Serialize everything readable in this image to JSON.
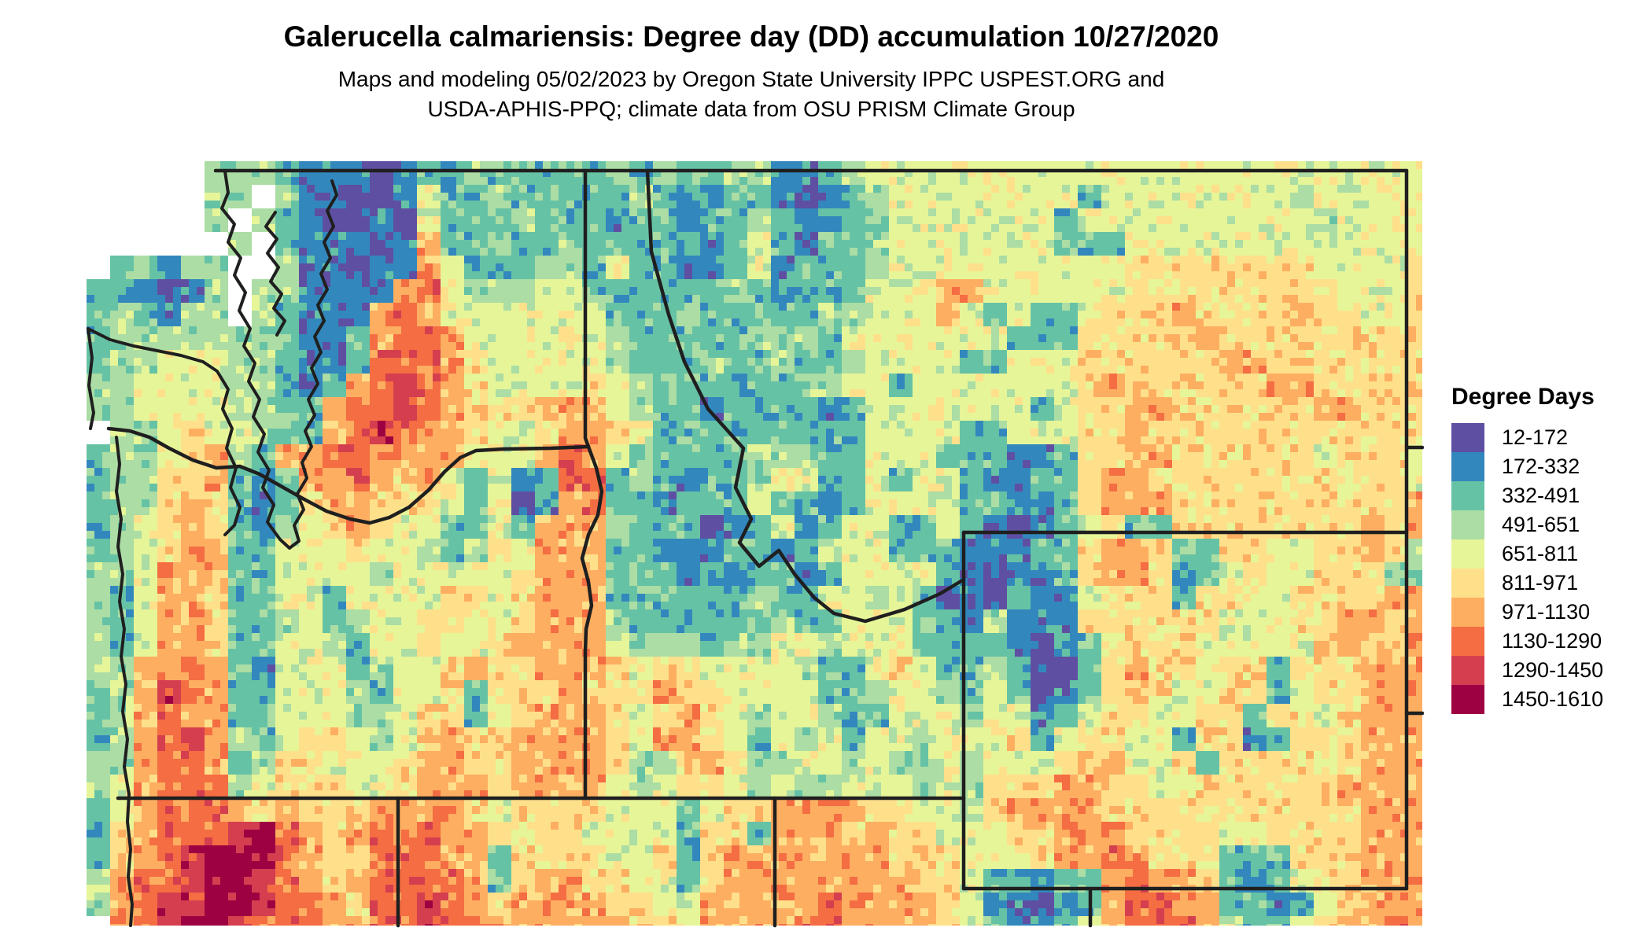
{
  "title": "Galerucella calmariensis: Degree day (DD) accumulation 10/27/2020",
  "subtitle_line1": "Maps and modeling 05/02/2023 by Oregon State University IPPC USPEST.ORG and",
  "subtitle_line2": "USDA-APHIS-PPQ; climate data from OSU PRISM Climate Group",
  "legend": {
    "title": "Degree Days",
    "entries": [
      {
        "label": "12-172",
        "color": "#5e4fa2"
      },
      {
        "label": "172-332",
        "color": "#3288bd"
      },
      {
        "label": "332-491",
        "color": "#66c2a5"
      },
      {
        "label": "491-651",
        "color": "#abdda4"
      },
      {
        "label": "651-811",
        "color": "#e6f598"
      },
      {
        "label": "811-971",
        "color": "#fee08b"
      },
      {
        "label": "971-1130",
        "color": "#fdae61"
      },
      {
        "label": "1130-1290",
        "color": "#f46d43"
      },
      {
        "label": "1290-1450",
        "color": "#d53e4f"
      },
      {
        "label": "1450-1610",
        "color": "#9e0142"
      }
    ]
  },
  "chart_data": {
    "type": "heatmap",
    "title": "Galerucella calmariensis: Degree day (DD) accumulation 10/27/2020",
    "legend_title": "Degree Days",
    "classes": [
      "12-172",
      "172-332",
      "332-491",
      "491-651",
      "651-811",
      "811-971",
      "971-1130",
      "1130-1290",
      "1290-1450",
      "1450-1610"
    ],
    "palette": [
      "#5e4fa2",
      "#3288bd",
      "#66c2a5",
      "#abdda4",
      "#e6f598",
      "#fee08b",
      "#fdae61",
      "#f46d43",
      "#d53e4f",
      "#9e0142"
    ],
    "note_visible_region": "Pacific Northwest: WA, OR, ID, MT, WY with edges of CA, NV, UT, CO, ND, SD, NE"
  },
  "map": {
    "palette": [
      "#5e4fa2",
      "#3288bd",
      "#66c2a5",
      "#abdda4",
      "#e6f598",
      "#fee08b",
      "#fdae61",
      "#f46d43",
      "#d53e4f",
      "#9e0142"
    ],
    "grid": [
      [
        ".....33321",
        "1101223222",
        "2232322331",
        "1234444444",
        "4444444444",
        "4444444"
      ],
      [
        ".....33.31",
        "1001422322",
        "2223211221",
        "0123444444",
        "4424444444",
        "4344444"
      ],
      [
        ".....3.321",
        "0010422232",
        "2212212232",
        "1123444444",
        "4244444444",
        "4434444"
      ],
      [
        "......3.21",
        "1101622322",
        "3222221242",
        "1223444444",
        "4222444444",
        "4444444"
      ],
      [
        ".23133..31",
        "1011642223",
        "3242211241",
        "2223444444",
        "4444555555",
        "5544445"
      ],
      [
        "221013.331",
        "1116743334",
        "4222222321",
        "2224446644",
        "4444555555",
        "5554445"
      ],
      [
        "232133.321",
        "1167644444",
        "4422232222",
        "2334446424",
        "2245556555",
        "5655445"
      ],
      [
        "2333333321",
        "1267764444",
        "4432222233",
        "3244444442",
        "2255555655",
        "5555555"
      ],
      [
        "2334443321",
        "1277765444",
        "4432223223",
        "2234444224",
        "4455555566",
        "5555555"
      ],
      [
        "3344443321",
        "2678765444",
        "4543222222",
        "3344244444",
        "4456555555",
        "6655555"
      ],
      [
        "3344443322",
        "6778765556",
        "6643221222",
        "2124444444",
        "2455665555",
        "5566555"
      ],
      [
        ".334544322",
        "6787665445",
        "6654222222",
        "2224444224",
        "4455655555",
        "5555555"
      ],
      [
        "2334563266",
        "7766664446",
        "7642222233",
        "3224442221",
        "1255665555",
        "5545554"
      ],
      [
        "2335562126",
        "6765642412",
        "7723212234",
        "4224244211",
        "2256655555",
        "5554554"
      ],
      [
        "2335652125",
        "6655542401",
        "6722122242",
        "2124444221",
        "1256665555",
        "5555556"
      ],
      [
        "2345652134",
        "5654422426",
        "6632220124",
        "1244224210",
        "1245225555",
        "5555656"
      ],
      [
        "2345662244",
        "4544323546",
        "6622111221",
        "2444222111",
        "2256652255",
        "4455653"
      ],
      [
        "3346662244",
        "4434444456",
        "6622212122",
        "1244442101",
        "1256651245",
        "4455533"
      ],
      [
        "3246652244",
        "2444455456",
        "6622222232",
        "2443420102",
        "1145552554",
        "4555566"
      ],
      [
        "3246652234",
        "2344554456",
        "6632222223",
        "2244432131",
        "1155555544",
        "4556656"
      ],
      [
        "3246652244",
        "3244544566",
        "6643332334",
        "4344422221",
        "0125555444",
        "4456556"
      ],
      [
        "3366762144",
        "4234456556",
        "6654554444",
        "3224542232",
        "0025655455",
        "2555666"
      ],
      [
        "2368762244",
        "4324452555",
        "6555655444",
        "4223443242",
        "0125654455",
        "2455666"
      ],
      [
        "2367662244",
        "4334552456",
        "6654565434",
        "4322444344",
        "1245544552",
        "5545666"
      ],
      [
        "2367863245",
        "5434565566",
        "6654665424",
        "3424434445",
        "2455442551",
        "2555666"
      ],
      [
        "3367762355",
        "4445665566",
        "6653356533",
        "4434334344",
        "4556445255",
        "5545666"
      ],
      [
        "3467773455",
        "5445666566",
        "6643455434",
        "3344434355",
        "5665544555",
        "5556666"
      ],
      [
        "2467776565",
        "5566665455",
        "5544424556",
        "6665544356",
        "6665555555",
        "5555666"
      ],
      [
        "2567778976",
        "5676766545",
        "5444425526",
        "6656554445",
        "5666555544",
        "5555666"
      ],
      [
        "2567899976",
        "5577766255",
        "5544525666",
        "6666555444",
        "5667655522",
        "2555666"
      ],
      [
        "3677899876",
        "5677776256",
        "6554425666",
        "6666655422",
        "1226766521",
        "2455666"
      ],
      [
        "3678899877",
        "6577876566",
        "6655446666",
        "6766665411",
        "0126776622",
        "1245666"
      ],
      [
        ".678998777",
        "6677877666",
        "6665546666",
        "7766665421",
        "1246777642",
        "2456676"
      ]
    ]
  }
}
